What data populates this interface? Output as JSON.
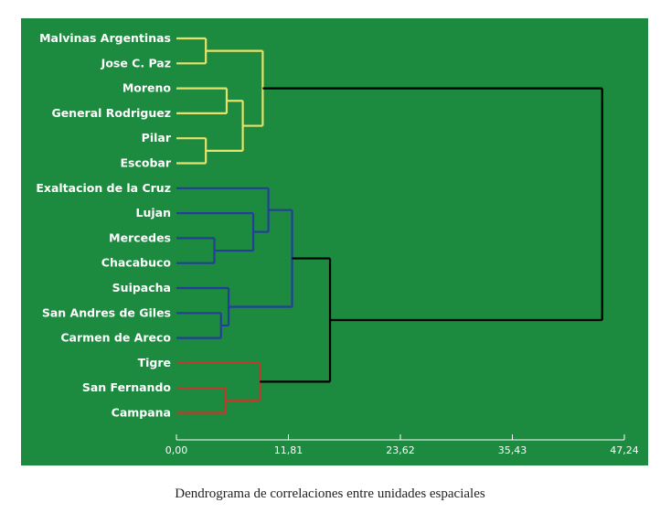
{
  "caption": "Dendrograma de correlaciones entre unidades espaciales",
  "colors": {
    "background": "#1c8a3f",
    "cluster_yellow": "#e8e26a",
    "cluster_blue": "#233f97",
    "cluster_red": "#c0392b",
    "root": "#000000",
    "axis": "#ffffff"
  },
  "chart_data": {
    "type": "dendrogram",
    "title": "",
    "xlabel": "",
    "ylabel": "",
    "xlim": [
      0,
      47.24
    ],
    "x_ticks": [
      "0,00",
      "11,81",
      "23,62",
      "35,43",
      "47,24"
    ],
    "x_tick_values": [
      0,
      11.81,
      23.62,
      35.43,
      47.24
    ],
    "leaves": [
      {
        "label": "Malvinas Argentinas",
        "cluster": "yellow"
      },
      {
        "label": "Jose C. Paz",
        "cluster": "yellow"
      },
      {
        "label": "Moreno",
        "cluster": "yellow"
      },
      {
        "label": "General Rodriguez",
        "cluster": "yellow"
      },
      {
        "label": "Pilar",
        "cluster": "yellow"
      },
      {
        "label": "Escobar",
        "cluster": "yellow"
      },
      {
        "label": "Exaltacion de la Cruz",
        "cluster": "blue"
      },
      {
        "label": "Lujan",
        "cluster": "blue"
      },
      {
        "label": "Mercedes",
        "cluster": "blue"
      },
      {
        "label": "Chacabuco",
        "cluster": "blue"
      },
      {
        "label": "Suipacha",
        "cluster": "blue"
      },
      {
        "label": "San Andres de Giles",
        "cluster": "blue"
      },
      {
        "label": "Carmen de Areco",
        "cluster": "blue"
      },
      {
        "label": "Tigre",
        "cluster": "red"
      },
      {
        "label": "San Fernando",
        "cluster": "red"
      },
      {
        "label": "Campana",
        "cluster": "red"
      }
    ],
    "merges": [
      {
        "a": "L0",
        "b": "L1",
        "height": 3.1,
        "cluster": "yellow"
      },
      {
        "a": "L2",
        "b": "L3",
        "height": 5.3,
        "cluster": "yellow"
      },
      {
        "a": "L4",
        "b": "L5",
        "height": 3.1,
        "cluster": "yellow"
      },
      {
        "a": "M1",
        "b": "M2",
        "height": 7.0,
        "cluster": "yellow"
      },
      {
        "a": "M0",
        "b": "M3",
        "height": 9.1,
        "cluster": "yellow"
      },
      {
        "a": "L8",
        "b": "L9",
        "height": 4.0,
        "cluster": "blue"
      },
      {
        "a": "L7",
        "b": "M5",
        "height": 8.1,
        "cluster": "blue"
      },
      {
        "a": "L6",
        "b": "M6",
        "height": 9.7,
        "cluster": "blue"
      },
      {
        "a": "L11",
        "b": "L12",
        "height": 4.7,
        "cluster": "blue"
      },
      {
        "a": "L10",
        "b": "M8",
        "height": 5.5,
        "cluster": "blue"
      },
      {
        "a": "M7",
        "b": "M9",
        "height": 12.2,
        "cluster": "blue"
      },
      {
        "a": "L14",
        "b": "L15",
        "height": 5.2,
        "cluster": "red"
      },
      {
        "a": "L13",
        "b": "M11",
        "height": 8.8,
        "cluster": "red"
      },
      {
        "a": "M10",
        "b": "M12",
        "height": 16.2,
        "cluster": "root"
      },
      {
        "a": "M4",
        "b": "M13",
        "height": 44.9,
        "cluster": "root"
      }
    ],
    "grid": false,
    "legend": "none"
  }
}
